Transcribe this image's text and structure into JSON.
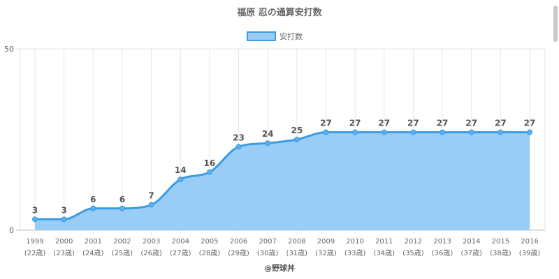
{
  "chart_data": {
    "type": "area",
    "title": "福原 忍の通算安打数",
    "legend": {
      "label": "安打数",
      "placement": "top"
    },
    "categories": [
      "1999",
      "2000",
      "2001",
      "2002",
      "2003",
      "2004",
      "2005",
      "2006",
      "2007",
      "2008",
      "2009",
      "2010",
      "2011",
      "2012",
      "2013",
      "2014",
      "2015",
      "2016"
    ],
    "age_labels": [
      "(22歳)",
      "(23歳)",
      "(24歳)",
      "(25歳)",
      "(26歳)",
      "(27歳)",
      "(28歳)",
      "(29歳)",
      "(30歳)",
      "(31歳)",
      "(32歳)",
      "(33歳)",
      "(34歳)",
      "(35歳)",
      "(36歳)",
      "(37歳)",
      "(38歳)",
      "(39歳)"
    ],
    "series": [
      {
        "name": "安打数",
        "values": [
          3,
          3,
          6,
          6,
          7,
          14,
          16,
          23,
          24,
          25,
          27,
          27,
          27,
          27,
          27,
          27,
          27,
          27
        ]
      }
    ],
    "ylim": [
      0,
      50
    ],
    "yticks": [
      0,
      50
    ],
    "grid": true,
    "data_labels": true,
    "colors": {
      "line": "#3a9be6",
      "fill": "#99cdf5",
      "grid": "#e6e6e6",
      "axis": "#bdbdbd"
    }
  },
  "source_label": "@野球丼"
}
